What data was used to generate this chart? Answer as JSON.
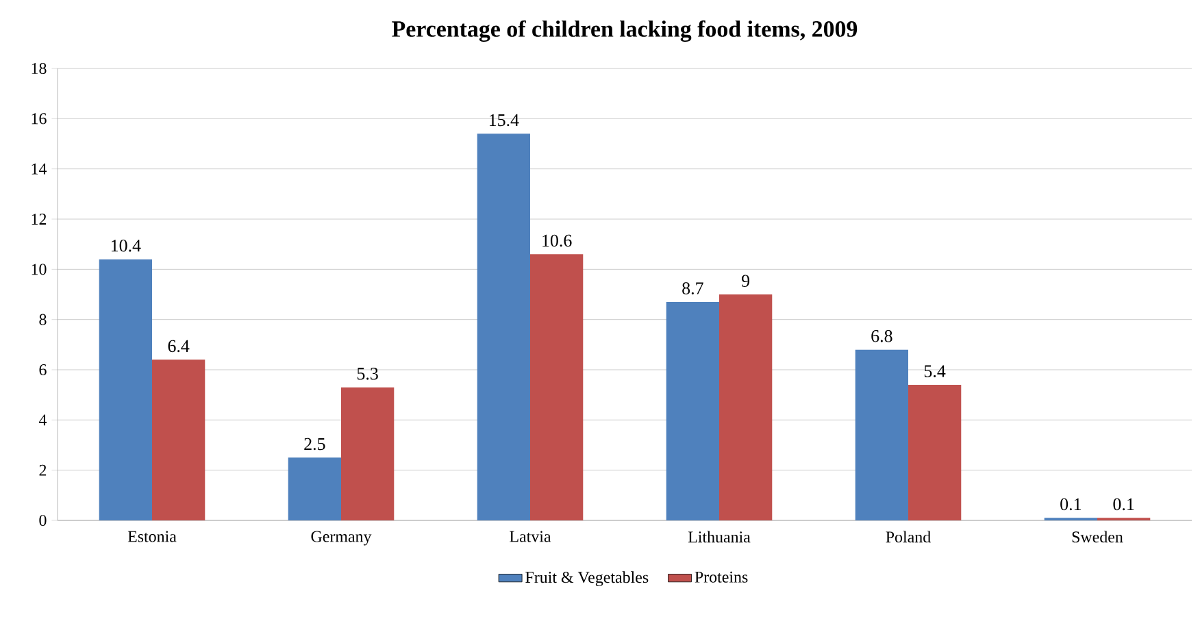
{
  "chart_data": {
    "type": "bar",
    "title": "Percentage of children lacking food items, 2009",
    "categories": [
      "Estonia",
      "Germany",
      "Latvia",
      "Lithuania",
      "Poland",
      "Sweden"
    ],
    "series": [
      {
        "name": "Fruit & Vegetables",
        "color": "#4f81bd",
        "values": [
          10.4,
          2.5,
          15.4,
          8.7,
          6.8,
          0.1
        ]
      },
      {
        "name": "Proteins",
        "color": "#c0504d",
        "values": [
          6.4,
          5.3,
          10.6,
          9,
          5.4,
          0.1
        ]
      }
    ],
    "ylim": [
      0,
      18
    ],
    "yticks": [
      0,
      2,
      4,
      6,
      8,
      10,
      12,
      14,
      16,
      18
    ],
    "grid": "y",
    "legend": "bottom",
    "data_labels": true
  }
}
